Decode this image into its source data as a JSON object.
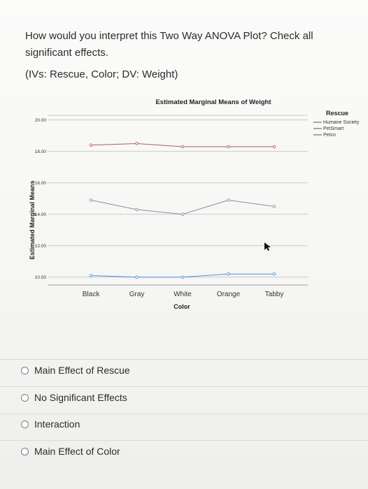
{
  "question": {
    "text": "How would you interpret this Two Way ANOVA Plot? Check all significant effects.",
    "variables": "(IVs: Rescue, Color; DV: Weight)"
  },
  "chart_data": {
    "type": "line",
    "title": "Estimated Marginal Means of Weight",
    "xlabel": "Color",
    "ylabel": "Estimated Marginal Means",
    "categories": [
      "Black",
      "Gray",
      "White",
      "Orange",
      "Tabby"
    ],
    "yticks": [
      "10.00",
      "12.00",
      "14.00",
      "16.00",
      "18.00",
      "20.00"
    ],
    "ylim": [
      9.5,
      20.3
    ],
    "legend_title": "Rescue",
    "legend_position": "top-right",
    "grid": true,
    "series": [
      {
        "name": "Humane Society",
        "color": "#b05a6e",
        "values": [
          18.4,
          18.5,
          18.3,
          18.3,
          18.3
        ]
      },
      {
        "name": "PetSmart",
        "color": "#8a9096",
        "values": [
          14.9,
          14.3,
          14.0,
          14.9,
          14.5
        ]
      },
      {
        "name": "Petco",
        "color": "#4f8fd0",
        "values": [
          10.1,
          10.0,
          10.0,
          10.2,
          10.2
        ]
      }
    ]
  },
  "options": [
    {
      "label": "Main Effect of Rescue"
    },
    {
      "label": "No Significant Effects"
    },
    {
      "label": "Interaction"
    },
    {
      "label": "Main Effect of Color"
    }
  ]
}
